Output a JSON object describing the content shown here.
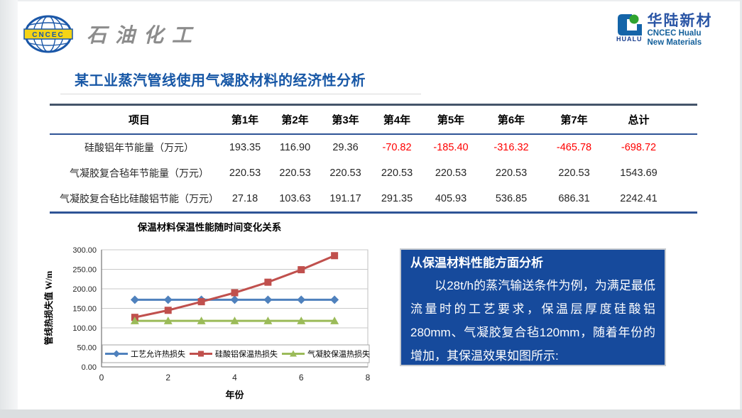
{
  "slide": {
    "logos": {
      "cncec": {
        "badge_text": "CNCEC",
        "brand_text": "石油化工"
      },
      "hualu": {
        "mark_text": "HUALU",
        "name_cn": "华陆新材",
        "name_en_line1": "CNCEC Hualu",
        "name_en_line2": "New Materials"
      }
    },
    "title": "某工业蒸汽管线使用气凝胶材料的经济性分析"
  },
  "table": {
    "headers": [
      "项目",
      "第1年",
      "第2年",
      "第3年",
      "第4年",
      "第5年",
      "第6年",
      "第7年",
      "总计"
    ],
    "rows": [
      {
        "label": "硅酸铝年节能量（万元）",
        "values": [
          "193.35",
          "116.90",
          "29.36",
          "-70.82",
          "-185.40",
          "-316.32",
          "-465.78",
          "-698.72"
        ]
      },
      {
        "label": "气凝胶复合毡年节能量（万元）",
        "values": [
          "220.53",
          "220.53",
          "220.53",
          "220.53",
          "220.53",
          "220.53",
          "220.53",
          "1543.69"
        ]
      },
      {
        "label": "气凝胶复合毡比硅酸铝节能（万元）",
        "values": [
          "27.18",
          "103.63",
          "191.17",
          "291.35",
          "405.93",
          "536.85",
          "686.31",
          "2242.41"
        ]
      }
    ],
    "negative_color": "#ff0000"
  },
  "chart_data": {
    "type": "line",
    "title": "保温材料保温性能随时间变化关系",
    "xlabel": "年份",
    "ylabel": "管线热损失值 W/m",
    "x": [
      1,
      2,
      3,
      4,
      5,
      6,
      7
    ],
    "xlim": [
      0,
      8
    ],
    "xtick_step": 2,
    "ylim": [
      0,
      300
    ],
    "ytick_step": 50,
    "ytick_decimals": 2,
    "grid": true,
    "legend_position": "bottom-inside",
    "series": [
      {
        "name": "工艺允许热损失",
        "color": "#4F81BD",
        "marker": "diamond",
        "values": [
          172,
          172,
          172,
          172,
          172,
          172,
          172
        ]
      },
      {
        "name": "硅酸铝保温热损失",
        "color": "#C0504D",
        "marker": "square",
        "values": [
          127,
          145,
          167,
          190,
          217,
          249,
          285
        ]
      },
      {
        "name": "气凝胶保温热损失",
        "color": "#9BBB59",
        "marker": "triangle",
        "values": [
          118,
          118,
          118,
          118,
          118,
          118,
          118
        ]
      }
    ]
  },
  "analysis_box": {
    "title": "从保温材料性能方面分析",
    "body": "　　以28t/h的蒸汽输送条件为例，为满足最低流量时的工艺要求，保温层厚度硅酸铝280mm、气凝胶复合毡120mm，随着年份的增加，其保温效果如图所示:",
    "bg_color": "#164A9C"
  }
}
